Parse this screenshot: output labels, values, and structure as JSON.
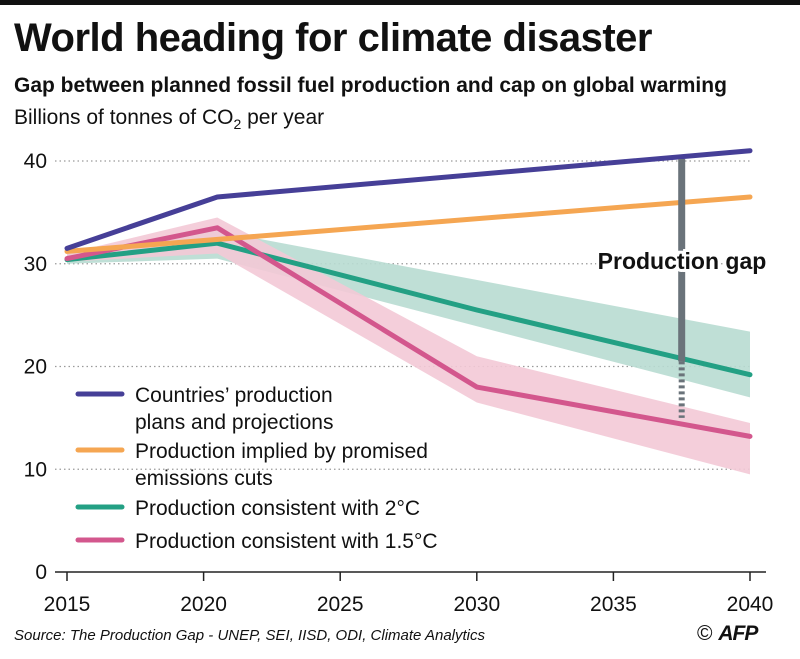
{
  "header": {
    "title": "World heading for climate disaster",
    "subtitle": "Gap between planned fossil fuel production and cap on global warming",
    "unit_prefix": "Billions of tonnes of CO",
    "unit_sub": "2",
    "unit_suffix": " per year"
  },
  "footer": {
    "source": "Source: The Production Gap - UNEP, SEI, IISD, ODI, Climate Analytics",
    "copyright": "©",
    "agency": "AFP"
  },
  "chart_data": {
    "type": "line",
    "xlim": [
      2015,
      2040
    ],
    "ylim": [
      0,
      40
    ],
    "xticks": [
      2015,
      2020,
      2025,
      2030,
      2035,
      2040
    ],
    "yticks": [
      0,
      10,
      20,
      30,
      40
    ],
    "grid": "dotted horizontal",
    "legend_position": "bottom-left",
    "series": [
      {
        "name": "Countries’ production plans and projections",
        "label_lines": [
          "Countries’ production",
          "plans and projections"
        ],
        "color": "#463f97",
        "points": [
          [
            2015,
            31.5
          ],
          [
            2020.5,
            36.5
          ],
          [
            2040,
            41
          ]
        ]
      },
      {
        "name": "Production implied by promised emissions cuts",
        "label_lines": [
          "Production implied by promised",
          "emissions cuts"
        ],
        "color": "#f5a652",
        "points": [
          [
            2015,
            31.2
          ],
          [
            2040,
            36.5
          ]
        ]
      },
      {
        "name": "Production consistent with 2°C",
        "label_lines": [
          "Production consistent with 2°C"
        ],
        "color": "#23a084",
        "band_color": "#b8dcd1",
        "points": [
          [
            2015,
            30.4
          ],
          [
            2020.5,
            32
          ],
          [
            2030,
            25.5
          ],
          [
            2040,
            19.2
          ]
        ],
        "band_upper": [
          [
            2015,
            30.9
          ],
          [
            2020.5,
            33.2
          ],
          [
            2040,
            23.4
          ]
        ],
        "band_lower": [
          [
            2015,
            30
          ],
          [
            2020.5,
            30.5
          ],
          [
            2040,
            17
          ]
        ]
      },
      {
        "name": "Production consistent with 1.5°C",
        "label_lines": [
          "Production consistent with 1.5°C"
        ],
        "color": "#d3578d",
        "band_color": "#f3c9d6",
        "points": [
          [
            2015,
            30.5
          ],
          [
            2020.5,
            33.5
          ],
          [
            2030,
            18
          ],
          [
            2040,
            13.2
          ]
        ],
        "band_upper": [
          [
            2015,
            31
          ],
          [
            2020.5,
            34.5
          ],
          [
            2030,
            21
          ],
          [
            2040,
            14.5
          ]
        ],
        "band_lower": [
          [
            2015,
            30.2
          ],
          [
            2020.5,
            31
          ],
          [
            2030,
            16.5
          ],
          [
            2040,
            9.5
          ]
        ]
      }
    ],
    "annotation": {
      "label": "Production gap",
      "x": 2037.5,
      "solid_from": 40.2,
      "solid_to": 20.5,
      "dotted_to": 15,
      "color": "#6a737a"
    }
  }
}
